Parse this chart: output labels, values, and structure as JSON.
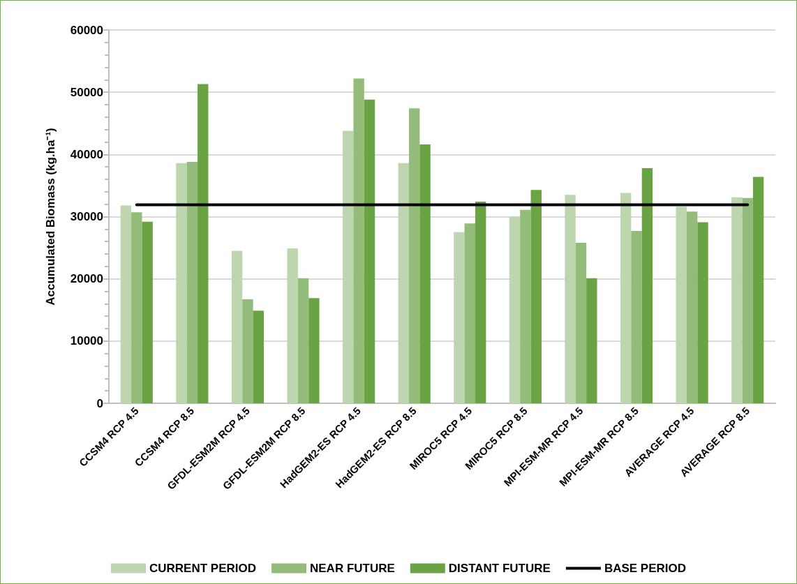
{
  "chart_data": {
    "type": "bar",
    "ylabel": "Accumulated Biomass (kg.ha⁻¹)",
    "categories": [
      "CCSM4 RCP 4.5",
      "CCSM4 RCP 8.5",
      "GFDL-ESM2M RCP 4.5",
      "GFDL-ESM2M RCP 8.5",
      "HadGEM2-ES RCP 4.5",
      "HadGEM2-ES RCP 8.5",
      "MIROC5 RCP 4.5",
      "MIROC5 RCP 8.5",
      "MPI-ESM-MR RCP 4.5",
      "MPI-ESM-MR RCP 8.5",
      "AVERAGE RCP 4.5",
      "AVERAGE RCP 8.5"
    ],
    "series": [
      {
        "name": "CURRENT PERIOD",
        "color": "#bdd6b0",
        "values": [
          31800,
          38600,
          24500,
          24900,
          43800,
          38600,
          27500,
          30000,
          33500,
          33800,
          31600,
          33100
        ]
      },
      {
        "name": "NEAR FUTURE",
        "color": "#93bb79",
        "values": [
          30700,
          38800,
          16700,
          20100,
          52200,
          47400,
          28900,
          31100,
          25800,
          27700,
          30800,
          33000
        ]
      },
      {
        "name": "DISTANT FUTURE",
        "color": "#6aa343",
        "values": [
          29200,
          51300,
          14900,
          16900,
          48800,
          41600,
          32400,
          34300,
          20100,
          37800,
          29100,
          36400
        ]
      },
      {
        "name": "BASE PERIOD",
        "type": "line",
        "color": "#000000",
        "values": [
          31900,
          31900,
          31900,
          31900,
          31900,
          31900,
          31900,
          31900,
          31900,
          31900,
          31900,
          31900
        ]
      }
    ],
    "ylim": [
      0,
      60000
    ],
    "yticks": [
      0,
      10000,
      20000,
      30000,
      40000,
      50000,
      60000
    ],
    "grid": "y",
    "legend": "bottom"
  }
}
